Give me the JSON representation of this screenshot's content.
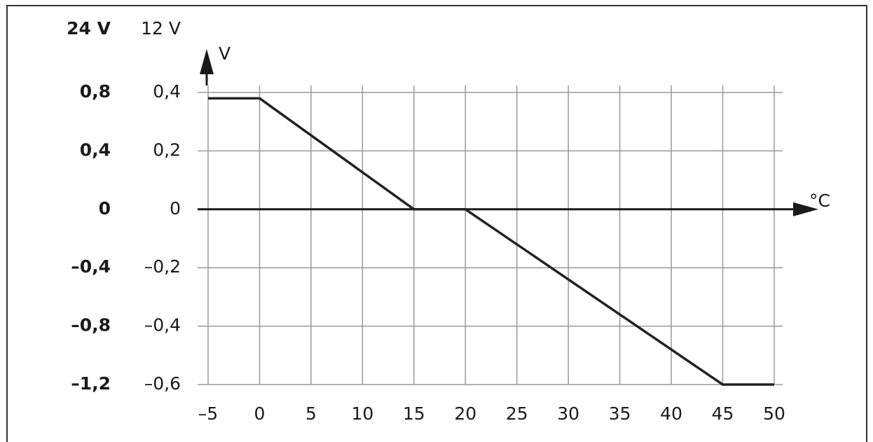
{
  "chart_data": {
    "type": "line",
    "y2_header": "24 V",
    "y_header": "12 V",
    "y_axis_label": "V",
    "x_axis_label": "°C",
    "x": [
      -5,
      0,
      15,
      20,
      45,
      50
    ],
    "series": [
      {
        "color": "#222222",
        "values": [
          0.38,
          0.38,
          0,
          0,
          -0.6,
          -0.6
        ]
      }
    ],
    "xlim": [
      -5,
      50
    ],
    "xticks": [
      {
        "value": -5,
        "label": "–5"
      },
      0,
      5,
      10,
      15,
      20,
      25,
      30,
      35,
      40,
      45,
      50
    ],
    "ylim": [
      -0.6,
      0.4
    ],
    "yticks": [
      {
        "value": 0.4,
        "label": "0,4"
      },
      {
        "value": 0.2,
        "label": "0,2"
      },
      0,
      {
        "value": -0.2,
        "label": "–0,2"
      },
      {
        "value": -0.4,
        "label": "–0,4"
      },
      {
        "value": -0.6,
        "label": "–0,6"
      }
    ],
    "y2lim": [
      -1.2,
      0.8
    ],
    "y2ticks": [
      {
        "value": 0.8,
        "label": "0,8"
      },
      {
        "value": 0.4,
        "label": "0,4"
      },
      0,
      {
        "value": -0.4,
        "label": "–0,4"
      },
      {
        "value": -0.8,
        "label": "–0,8"
      },
      {
        "value": -1.2,
        "label": "–1,2"
      }
    ],
    "grid": true
  }
}
